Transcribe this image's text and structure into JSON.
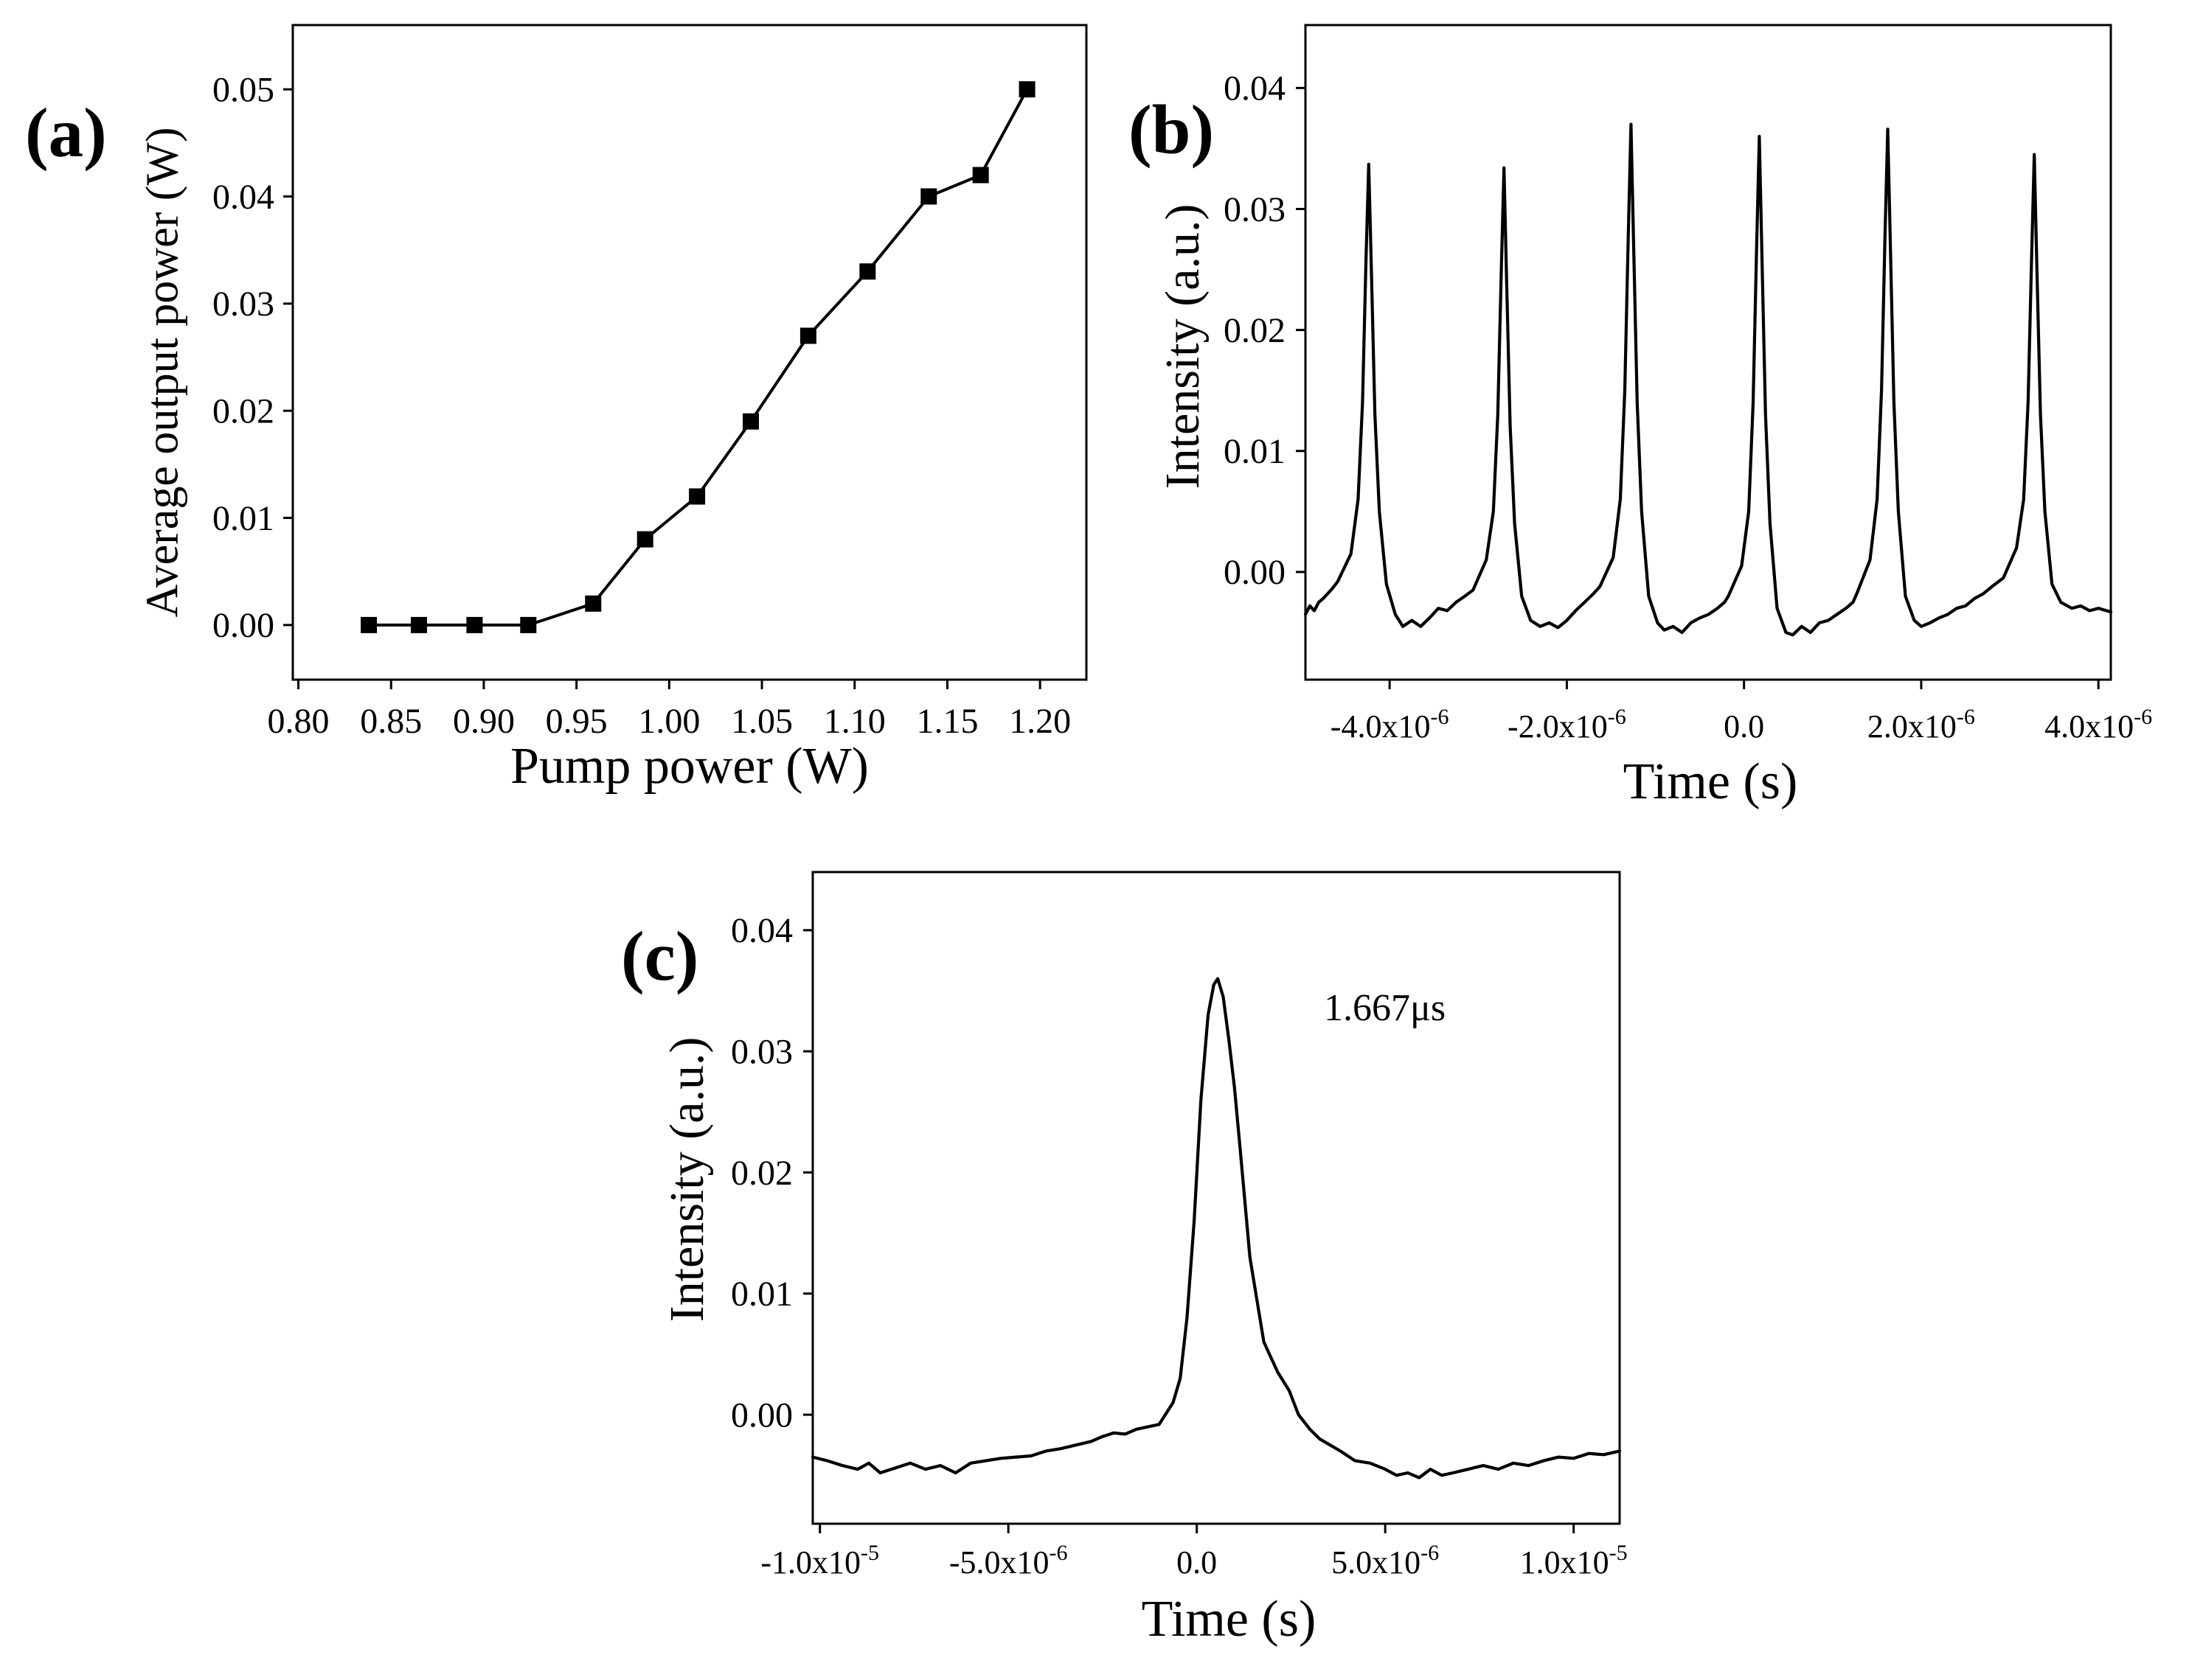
{
  "colors": {
    "line": "#000000",
    "text": "#000000",
    "background": "#ffffff"
  },
  "chart_data": [
    {
      "panel_label": "(a)",
      "type": "line",
      "title": "",
      "xlabel": "Pump power (W)",
      "ylabel": "Average output power (W)",
      "xlim": [
        0.797,
        1.225
      ],
      "ylim": [
        -0.0051,
        0.056
      ],
      "grid": false,
      "xticks": [
        {
          "value": 0.8,
          "label": "0.80"
        },
        {
          "value": 0.85,
          "label": "0.85"
        },
        {
          "value": 0.9,
          "label": "0.90"
        },
        {
          "value": 0.95,
          "label": "0.95"
        },
        {
          "value": 1.0,
          "label": "1.00"
        },
        {
          "value": 1.05,
          "label": "1.05"
        },
        {
          "value": 1.1,
          "label": "1.10"
        },
        {
          "value": 1.15,
          "label": "1.15"
        },
        {
          "value": 1.2,
          "label": "1.20"
        }
      ],
      "yticks": [
        {
          "value": 0.0,
          "label": "0.00"
        },
        {
          "value": 0.01,
          "label": "0.01"
        },
        {
          "value": 0.02,
          "label": "0.02"
        },
        {
          "value": 0.03,
          "label": "0.03"
        },
        {
          "value": 0.04,
          "label": "0.04"
        },
        {
          "value": 0.05,
          "label": "0.05"
        }
      ],
      "series": [
        {
          "x": [
            0.838,
            0.865,
            0.895,
            0.924,
            0.959,
            0.987,
            1.015,
            1.044,
            1.075,
            1.107,
            1.14,
            1.168,
            1.193
          ],
          "y": [
            0.0,
            0.0,
            0.0,
            0.0,
            0.002,
            0.008,
            0.012,
            0.019,
            0.027,
            0.033,
            0.04,
            0.042,
            0.05
          ]
        }
      ]
    },
    {
      "panel_label": "(b)",
      "type": "line",
      "title": "",
      "xlabel": "Time (s)",
      "ylabel": "Intensity (a.u.)",
      "xlim": [
        -4.95e-06,
        4.14e-06
      ],
      "ylim": [
        -0.0089,
        0.0452
      ],
      "grid": false,
      "xticks": [
        {
          "value": -4e-06,
          "label": "-4.0x10",
          "sup": "-6"
        },
        {
          "value": -2e-06,
          "label": "-2.0x10",
          "sup": "-6"
        },
        {
          "value": 0.0,
          "label": "0.0"
        },
        {
          "value": 2e-06,
          "label": "2.0x10",
          "sup": "-6"
        },
        {
          "value": 4e-06,
          "label": "4.0x10",
          "sup": "-6"
        }
      ],
      "yticks": [
        {
          "value": 0.0,
          "label": "0.00"
        },
        {
          "value": 0.01,
          "label": "0.01"
        },
        {
          "value": 0.02,
          "label": "0.02"
        },
        {
          "value": 0.03,
          "label": "0.03"
        },
        {
          "value": 0.04,
          "label": "0.04"
        }
      ],
      "series": [
        {
          "x": [
            -4.95e-06,
            -4.9e-06,
            -4.85e-06,
            -4.8e-06,
            -4.75e-06,
            -4.7e-06,
            -4.65e-06,
            -4.586e-06,
            -4.436e-06,
            -4.356e-06,
            -4.306e-06,
            -4.266e-06,
            -4.236e-06,
            -4.206e-06,
            -4.166e-06,
            -4.116e-06,
            -4.036e-06,
            -3.936e-06,
            -3.85e-06,
            -3.75e-06,
            -3.65e-06,
            -3.55e-06,
            -3.45e-06,
            -3.35e-06,
            -3.25e-06,
            -3.15e-06,
            -3.059e-06,
            -2.909e-06,
            -2.829e-06,
            -2.779e-06,
            -2.739e-06,
            -2.709e-06,
            -2.679e-06,
            -2.639e-06,
            -2.589e-06,
            -2.509e-06,
            -2.409e-06,
            -2.3e-06,
            -2.2e-06,
            -2.1e-06,
            -2e-06,
            -1.9e-06,
            -1.8e-06,
            -1.7e-06,
            -1.626e-06,
            -1.476e-06,
            -1.396e-06,
            -1.346e-06,
            -1.306e-06,
            -1.276e-06,
            -1.246e-06,
            -1.206e-06,
            -1.156e-06,
            -1.076e-06,
            -9.76e-07,
            -9e-07,
            -8e-07,
            -7e-07,
            -6e-07,
            -5e-07,
            -4e-07,
            -3e-07,
            -2.2e-07,
            -1.77e-07,
            -2.7e-08,
            5.3e-08,
            1.03e-07,
            1.43e-07,
            1.73e-07,
            2.03e-07,
            2.43e-07,
            2.93e-07,
            3.73e-07,
            4.73e-07,
            5.5e-07,
            6.5e-07,
            7.5e-07,
            8.5e-07,
            9.5e-07,
            1.05e-06,
            1.15e-06,
            1.23e-06,
            1.272e-06,
            1.422e-06,
            1.502e-06,
            1.552e-06,
            1.592e-06,
            1.622e-06,
            1.652e-06,
            1.692e-06,
            1.742e-06,
            1.822e-06,
            1.922e-06,
            2e-06,
            2.1e-06,
            2.2e-06,
            2.3e-06,
            2.4e-06,
            2.5e-06,
            2.6e-06,
            2.7e-06,
            2.8e-06,
            2.926e-06,
            3.076e-06,
            3.156e-06,
            3.206e-06,
            3.246e-06,
            3.276e-06,
            3.306e-06,
            3.346e-06,
            3.396e-06,
            3.476e-06,
            3.576e-06,
            3.7e-06,
            3.8e-06,
            3.9e-06,
            4e-06,
            4.14e-06
          ],
          "y": [
            -0.0035,
            -0.0028,
            -0.0032,
            -0.0025,
            -0.0022,
            -0.0018,
            -0.0014,
            -0.0008,
            0.0015,
            0.006,
            0.014,
            0.026,
            0.0337,
            0.025,
            0.013,
            0.005,
            -0.001,
            -0.0035,
            -0.0045,
            -0.004,
            -0.0045,
            -0.0038,
            -0.003,
            -0.0032,
            -0.0025,
            -0.002,
            -0.0015,
            0.001,
            0.005,
            0.013,
            0.025,
            0.0334,
            0.024,
            0.012,
            0.004,
            -0.002,
            -0.004,
            -0.0045,
            -0.0042,
            -0.0046,
            -0.004,
            -0.0032,
            -0.0025,
            -0.0018,
            -0.0012,
            0.0012,
            0.006,
            0.015,
            0.028,
            0.037,
            0.027,
            0.014,
            0.005,
            -0.002,
            -0.0042,
            -0.0048,
            -0.0045,
            -0.005,
            -0.0042,
            -0.0038,
            -0.0035,
            -0.003,
            -0.0025,
            -0.002,
            0.0005,
            0.005,
            0.014,
            0.027,
            0.036,
            0.026,
            0.013,
            0.004,
            -0.003,
            -0.005,
            -0.0052,
            -0.0045,
            -0.005,
            -0.0042,
            -0.004,
            -0.0035,
            -0.003,
            -0.0025,
            -0.0018,
            0.001,
            0.006,
            0.015,
            0.028,
            0.0366,
            0.027,
            0.014,
            0.005,
            -0.002,
            -0.004,
            -0.0045,
            -0.0042,
            -0.0038,
            -0.0035,
            -0.003,
            -0.0028,
            -0.0022,
            -0.0018,
            -0.0012,
            -0.0005,
            0.002,
            0.006,
            0.014,
            0.026,
            0.0345,
            0.025,
            0.013,
            0.005,
            -0.001,
            -0.0025,
            -0.003,
            -0.0028,
            -0.0032,
            -0.003,
            -0.0033
          ]
        }
      ]
    },
    {
      "panel_label": "(c)",
      "type": "line",
      "title": "",
      "xlabel": "Time (s)",
      "ylabel": "Intensity (a.u.)",
      "xlim": [
        -1.019e-05,
        1.122e-05
      ],
      "ylim": [
        -0.009,
        0.0448
      ],
      "grid": false,
      "annotation": "1.667μs",
      "xticks": [
        {
          "value": -1e-05,
          "label": "-1.0x10",
          "sup": "-5"
        },
        {
          "value": -5e-06,
          "label": "-5.0x10",
          "sup": "-6"
        },
        {
          "value": 0.0,
          "label": "0.0"
        },
        {
          "value": 5e-06,
          "label": "5.0x10",
          "sup": "-6"
        },
        {
          "value": 1e-05,
          "label": "1.0x10",
          "sup": "-5"
        }
      ],
      "yticks": [
        {
          "value": 0.0,
          "label": "0.00"
        },
        {
          "value": 0.01,
          "label": "0.01"
        },
        {
          "value": 0.02,
          "label": "0.02"
        },
        {
          "value": 0.03,
          "label": "0.03"
        },
        {
          "value": 0.04,
          "label": "0.04"
        }
      ],
      "series": [
        {
          "x": [
            -1.019e-05,
            -9.8e-06,
            -9.4e-06,
            -9e-06,
            -8.7e-06,
            -8.4e-06,
            -8e-06,
            -7.6e-06,
            -7.2e-06,
            -6.8e-06,
            -6.4e-06,
            -6e-06,
            -5.6e-06,
            -5.2e-06,
            -4.8e-06,
            -4.4e-06,
            -4e-06,
            -3.6e-06,
            -3.2e-06,
            -2.8e-06,
            -2.5e-06,
            -2.2e-06,
            -1.9e-06,
            -1.6e-06,
            -1.3e-06,
            -1e-06,
            -6.3e-07,
            -4.4e-07,
            -2.6e-07,
            -7e-08,
            1.1e-07,
            3e-07,
            4.5e-07,
            5.56e-07,
            7e-07,
            8.5e-07,
            1e-06,
            1.15e-06,
            1.41e-06,
            1.78e-06,
            2.15e-06,
            2.45e-06,
            2.7e-06,
            3e-06,
            3.26e-06,
            3.81e-06,
            4.2e-06,
            4.6e-06,
            5e-06,
            5.3e-06,
            5.6e-06,
            5.9e-06,
            6.2e-06,
            6.5e-06,
            6.8e-06,
            7.2e-06,
            7.6e-06,
            8e-06,
            8.4e-06,
            8.8e-06,
            9.2e-06,
            9.6e-06,
            1e-05,
            1.04e-05,
            1.08e-05,
            1.122e-05
          ],
          "y": [
            -0.0035,
            -0.0038,
            -0.0042,
            -0.0045,
            -0.004,
            -0.0048,
            -0.0044,
            -0.004,
            -0.0045,
            -0.0042,
            -0.0048,
            -0.004,
            -0.0038,
            -0.0036,
            -0.0035,
            -0.0034,
            -0.003,
            -0.0028,
            -0.0025,
            -0.0022,
            -0.0018,
            -0.0015,
            -0.0016,
            -0.0012,
            -0.001,
            -0.0008,
            0.001,
            0.003,
            0.008,
            0.016,
            0.026,
            0.033,
            0.0355,
            0.036,
            0.0345,
            0.031,
            0.027,
            0.022,
            0.013,
            0.006,
            0.0035,
            0.002,
            0.0,
            -0.0012,
            -0.002,
            -0.003,
            -0.0038,
            -0.004,
            -0.0045,
            -0.005,
            -0.0048,
            -0.0052,
            -0.0045,
            -0.005,
            -0.0048,
            -0.0045,
            -0.0042,
            -0.0045,
            -0.004,
            -0.0042,
            -0.0038,
            -0.0035,
            -0.0036,
            -0.0032,
            -0.0033,
            -0.003
          ]
        }
      ]
    }
  ]
}
